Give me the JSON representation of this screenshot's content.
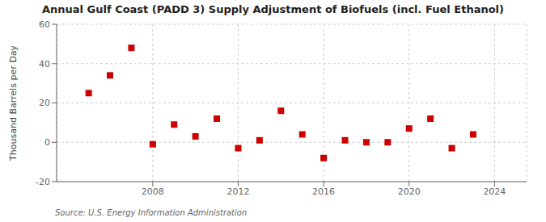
{
  "chart_data": {
    "type": "scatter",
    "title": "Annual Gulf Coast (PADD 3) Supply Adjustment of Biofuels (incl. Fuel Ethanol)",
    "y_label": "Thousand Barrels per Day",
    "annotations": [
      "Source: U.S. Energy Information Administration"
    ],
    "x": [
      2005,
      2006,
      2007,
      2008,
      2009,
      2010,
      2011,
      2012,
      2013,
      2014,
      2015,
      2016,
      2017,
      2018,
      2019,
      2020,
      2021,
      2022,
      2023
    ],
    "values": [
      25,
      34,
      48,
      -1,
      9,
      3,
      12,
      -3,
      1,
      16,
      4,
      -8,
      1,
      0,
      0,
      7,
      12,
      -3,
      4
    ],
    "color": "#cc0000",
    "marker": "square",
    "xlim": [
      2003.5,
      2025.5
    ],
    "xticks": [
      2008,
      2012,
      2016,
      2020,
      2024
    ],
    "ylim": [
      -20,
      60
    ],
    "yticks": [
      -20,
      0,
      20,
      40,
      60
    ],
    "grid": true
  }
}
